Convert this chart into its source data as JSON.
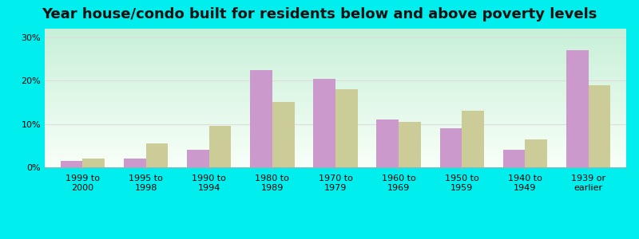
{
  "title": "Year house/condo built for residents below and above poverty levels",
  "categories": [
    "1999 to\n2000",
    "1995 to\n1998",
    "1990 to\n1994",
    "1980 to\n1989",
    "1970 to\n1979",
    "1960 to\n1969",
    "1950 to\n1959",
    "1940 to\n1949",
    "1939 or\nearlier"
  ],
  "below_poverty": [
    1.5,
    2.0,
    4.0,
    22.5,
    20.5,
    11.0,
    9.0,
    4.0,
    27.0
  ],
  "above_poverty": [
    2.0,
    5.5,
    9.5,
    15.0,
    18.0,
    10.5,
    13.0,
    6.5,
    19.0
  ],
  "below_color": "#cc99cc",
  "above_color": "#cccc99",
  "yticks": [
    0,
    10,
    20,
    30
  ],
  "ylim": [
    0,
    32
  ],
  "outer_bg": "#00eeee",
  "grid_color": "#dddddd",
  "title_fontsize": 13,
  "tick_fontsize": 8,
  "legend_fontsize": 9,
  "bar_width": 0.35,
  "bg_color_top": "#c8f0d8",
  "bg_color_bottom": "#f8fff8"
}
